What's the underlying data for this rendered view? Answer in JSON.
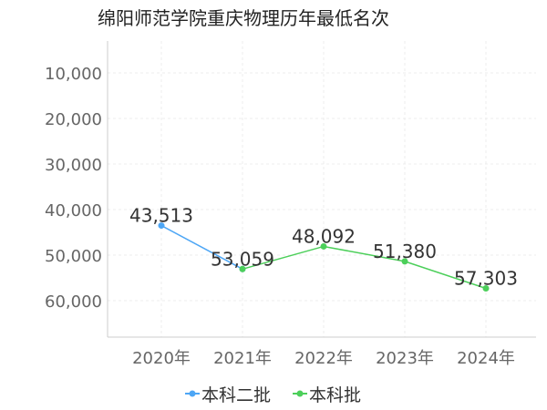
{
  "chart_data": {
    "type": "line",
    "title": "绵阳师范学院重庆物理历年最低名次",
    "xlabel": "",
    "ylabel": "",
    "categories": [
      "2020年",
      "2021年",
      "2022年",
      "2023年",
      "2024年"
    ],
    "y_ticks": [
      10000,
      20000,
      30000,
      40000,
      50000,
      60000
    ],
    "y_tick_labels": [
      "10,000",
      "20,000",
      "30,000",
      "40,000",
      "50,000",
      "60,000"
    ],
    "ylim": [
      3000,
      68000
    ],
    "y_inverted": true,
    "grid": true,
    "legend_position": "bottom",
    "series": [
      {
        "name": "本科二批",
        "color": "#4da6f5",
        "points": [
          {
            "x": "2020年",
            "y": 43513,
            "label": "43,513"
          },
          {
            "x": "2021年",
            "y": 53059,
            "label": "53,059"
          }
        ]
      },
      {
        "name": "本科批",
        "color": "#4ccf5a",
        "points": [
          {
            "x": "2021年",
            "y": 53059,
            "label": "53,059"
          },
          {
            "x": "2022年",
            "y": 48092,
            "label": "48,092"
          },
          {
            "x": "2023年",
            "y": 51380,
            "label": "51,380"
          },
          {
            "x": "2024年",
            "y": 57303,
            "label": "57,303"
          }
        ]
      }
    ]
  }
}
